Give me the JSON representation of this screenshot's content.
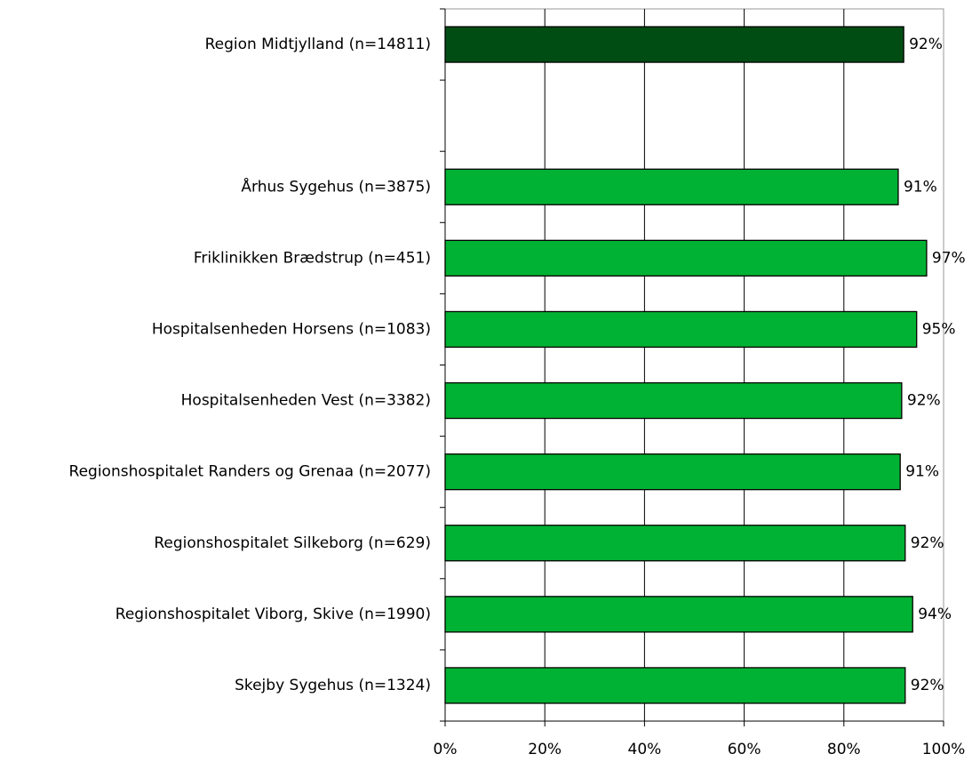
{
  "chart_data": {
    "type": "barh",
    "categories": [
      "Region Midtjylland (n=14811)",
      null,
      "Århus Sygehus (n=3875)",
      "Friklinikken Brædstrup (n=451)",
      "Hospitalsenheden Horsens (n=1083)",
      "Hospitalsenheden Vest (n=3382)",
      "Regionshospitalet Randers og Grenaa (n=2077)",
      "Regionshospitalet Silkeborg (n=629)",
      "Regionshospitalet Viborg, Skive (n=1990)",
      "Skejby Sygehus (n=1324)"
    ],
    "values": [
      92.0,
      null,
      90.9,
      96.6,
      94.6,
      91.6,
      91.3,
      92.3,
      93.8,
      92.3
    ],
    "value_labels": [
      "92%",
      null,
      "91%",
      "97%",
      "95%",
      "92%",
      "91%",
      "92%",
      "94%",
      "92%"
    ],
    "colors": [
      "#004d14",
      null,
      "#00b233",
      "#00b233",
      "#00b233",
      "#00b233",
      "#00b233",
      "#00b233",
      "#00b233",
      "#00b233"
    ],
    "xlim": [
      0,
      100
    ],
    "xticks": [
      {
        "value": 0,
        "label": "0%"
      },
      {
        "value": 20,
        "label": "20%"
      },
      {
        "value": 40,
        "label": "40%"
      },
      {
        "value": 60,
        "label": "60%"
      },
      {
        "value": 80,
        "label": "80%"
      },
      {
        "value": 100,
        "label": "100%"
      }
    ],
    "grid": true
  }
}
